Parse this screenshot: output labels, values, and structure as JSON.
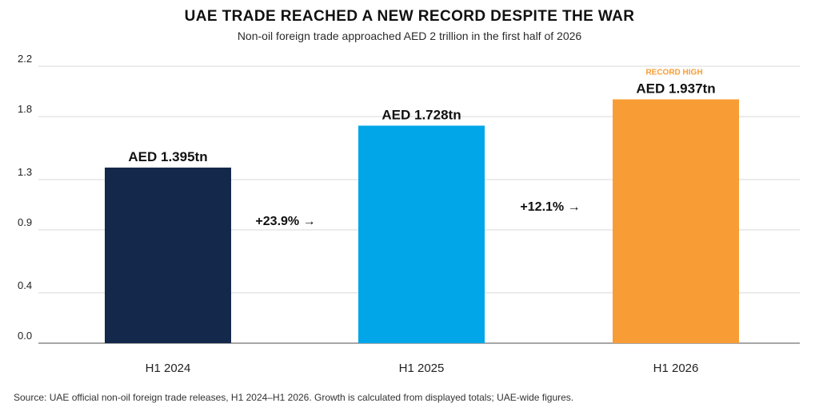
{
  "title": "UAE TRADE REACHED A NEW RECORD DESPITE THE WAR",
  "subtitle": "Non-oil foreign trade approached AED 2 trillion in the first half of 2026",
  "source": "Source: UAE official non-oil foreign trade releases, H1 2024–H1 2026. Growth is calculated from displayed totals; UAE-wide figures.",
  "colors": {
    "h1_2024": "#13284a",
    "h1_2025": "#00a6e8",
    "h1_2026": "#f89d35",
    "record_label": "#f89d35",
    "grid": "#d9d9d9",
    "axis": "#8a8a8a"
  },
  "chart_data": {
    "type": "bar",
    "categories": [
      "H1 2024",
      "H1 2025",
      "H1 2026"
    ],
    "values": [
      1.395,
      1.728,
      1.937
    ],
    "value_labels": [
      "AED 1.395tn",
      "AED 1.728tn",
      "AED 1.937tn"
    ],
    "ylim": [
      0,
      2.2
    ],
    "yticks": [
      0.0,
      0.4,
      0.9,
      1.3,
      1.8,
      2.2
    ],
    "ytick_labels": [
      "0.0",
      "0.4",
      "0.9",
      "1.3",
      "1.8",
      "2.2"
    ],
    "grid": true,
    "annotations": {
      "record_label": "RECORD HIGH",
      "growth": [
        "+23.9% →",
        "+12.1% →"
      ]
    }
  }
}
